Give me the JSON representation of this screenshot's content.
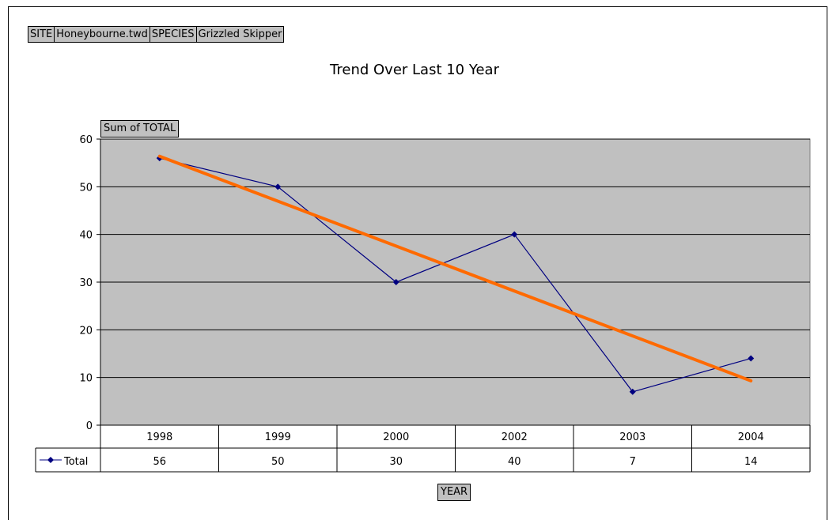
{
  "filters": [
    {
      "label": "SITE"
    },
    {
      "label": "Honeybourne.twd"
    },
    {
      "label": "SPECIES"
    },
    {
      "label": "Grizzled Skipper"
    }
  ],
  "colors": {
    "plot_background": "#c0c0c0",
    "series_line": "#000080",
    "trend_line": "#ff6a00"
  },
  "chart_data": {
    "type": "line",
    "title": "Trend Over Last 10 Year",
    "ylabel_button": "Sum of TOTAL",
    "xlabel_button": "YEAR",
    "categories": [
      "1998",
      "1999",
      "2000",
      "2002",
      "2003",
      "2004"
    ],
    "series": [
      {
        "name": "Total",
        "values": [
          56,
          50,
          30,
          40,
          7,
          14
        ],
        "marker": "diamond"
      }
    ],
    "trendline": {
      "type": "linear",
      "start": 56.4,
      "end": 9.3
    },
    "ylim": [
      0,
      60
    ],
    "yticks": [
      0,
      10,
      20,
      30,
      40,
      50,
      60
    ],
    "grid": true,
    "data_table": true
  }
}
